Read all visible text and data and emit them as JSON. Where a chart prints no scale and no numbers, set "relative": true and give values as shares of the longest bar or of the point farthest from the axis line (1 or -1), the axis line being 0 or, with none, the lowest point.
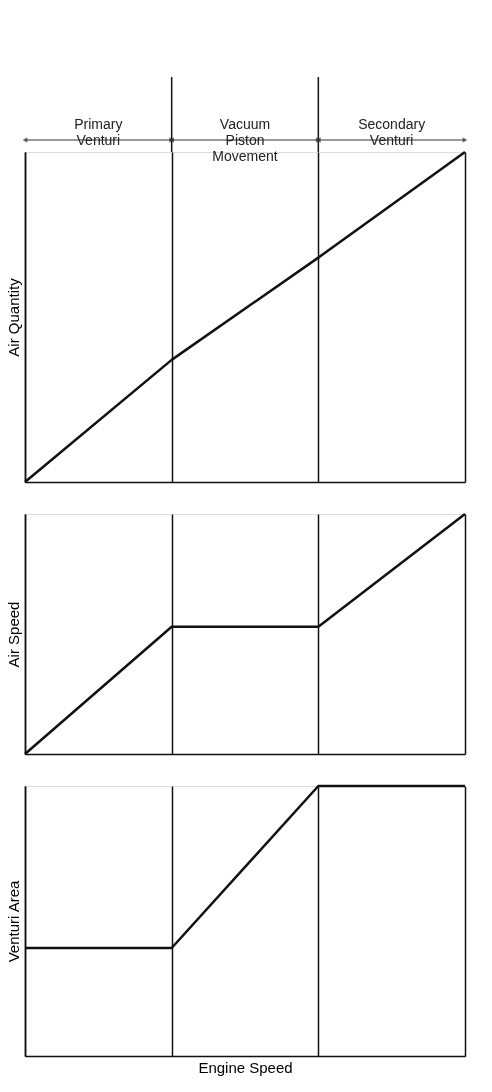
{
  "chart_data": [
    {
      "type": "line",
      "relative": true,
      "ylabel": "Air Quantity",
      "categories": [
        null,
        null,
        null,
        null
      ],
      "tick_labels": false,
      "grid": "x",
      "series": [
        {
          "color": "#111111",
          "values": [
            0,
            0.37,
            0.68,
            1
          ]
        }
      ],
      "annotations": [
        "Primary Venturi",
        "Vacuum Piston Movement",
        "Secondary Venturi"
      ]
    },
    {
      "type": "line",
      "relative": true,
      "ylabel": "Air Speed",
      "categories": [
        null,
        null,
        null,
        null
      ],
      "tick_labels": false,
      "grid": "x",
      "series": [
        {
          "color": "#111111",
          "values": [
            0,
            0.53,
            0.53,
            1
          ]
        }
      ]
    },
    {
      "type": "line",
      "relative": true,
      "ylabel": "Venturi Area",
      "xlabel": "Engine Speed",
      "categories": [
        null,
        null,
        null,
        null
      ],
      "tick_labels": false,
      "grid": "x",
      "series": [
        {
          "color": "#111111",
          "values": [
            0.4,
            0.4,
            1,
            1
          ]
        }
      ]
    }
  ]
}
